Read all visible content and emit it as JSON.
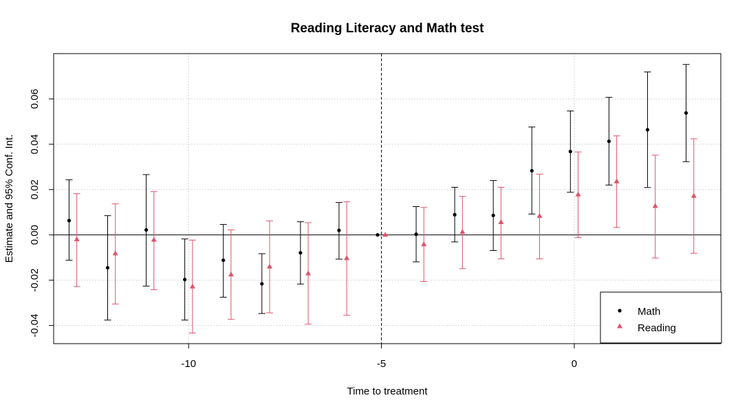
{
  "chart_data": {
    "type": "scatter",
    "title": "Reading Literacy and Math test",
    "xlabel": "Time to treatment",
    "ylabel": "Estimate and 95% Conf. Int.",
    "xlim": [
      -13.5,
      3.8
    ],
    "ylim": [
      -0.048,
      0.08
    ],
    "x_ticks": [
      -10,
      -5,
      0
    ],
    "y_ticks": [
      -0.04,
      -0.02,
      0.0,
      0.02,
      0.04,
      0.06
    ],
    "x_tick_labels": [
      "-10",
      "-5",
      "0"
    ],
    "y_tick_labels": [
      "-0.04",
      "-0.02",
      "0.00",
      "0.02",
      "0.04",
      "0.06"
    ],
    "grid": true,
    "reference_line_x": -5,
    "reference_line_y": 0,
    "legend_position": "bottom-right",
    "series": [
      {
        "name": "Math",
        "color": "#000000",
        "marker": "circle",
        "offset": -0.1,
        "x": [
          -13,
          -12,
          -11,
          -10,
          -9,
          -8,
          -7,
          -6,
          -5,
          -4,
          -3,
          -2,
          -1,
          0,
          1,
          2,
          3
        ],
        "y": [
          0.0063,
          -0.0145,
          0.0022,
          -0.0197,
          -0.0112,
          -0.0216,
          -0.0079,
          0.002,
          0.0,
          0.0003,
          0.0089,
          0.0086,
          0.0283,
          0.0368,
          0.0413,
          0.0464,
          0.0538
        ],
        "lower": [
          -0.0112,
          -0.0376,
          -0.0226,
          -0.0376,
          -0.0275,
          -0.0347,
          -0.0217,
          -0.0107,
          0.0,
          -0.0119,
          -0.0031,
          -0.0069,
          0.0092,
          0.0188,
          0.022,
          0.0209,
          0.0323
        ],
        "upper": [
          0.0243,
          0.0085,
          0.0266,
          -0.0018,
          0.0046,
          -0.0083,
          0.0058,
          0.0143,
          0.0,
          0.0125,
          0.021,
          0.024,
          0.0476,
          0.0547,
          0.0607,
          0.0719,
          0.0752
        ]
      },
      {
        "name": "Reading",
        "color": "#df536b",
        "marker": "triangle",
        "offset": 0.1,
        "x": [
          -13,
          -12,
          -11,
          -10,
          -9,
          -8,
          -7,
          -6,
          -5,
          -4,
          -3,
          -2,
          -1,
          0,
          1,
          2,
          3
        ],
        "y": [
          -0.002,
          -0.0082,
          -0.0022,
          -0.0228,
          -0.0175,
          -0.014,
          -0.017,
          -0.0103,
          0.0,
          -0.0042,
          0.0013,
          0.0056,
          0.0083,
          0.0178,
          0.0236,
          0.0127,
          0.0172
        ],
        "lower": [
          -0.0228,
          -0.0305,
          -0.0242,
          -0.0433,
          -0.0373,
          -0.0344,
          -0.0394,
          -0.0355,
          0.0,
          -0.0206,
          -0.0149,
          -0.0106,
          -0.0106,
          -0.0012,
          0.0033,
          -0.0102,
          -0.0081
        ],
        "upper": [
          0.0182,
          0.0137,
          0.0191,
          -0.0023,
          0.0022,
          0.0062,
          0.0054,
          0.0146,
          0.0,
          0.0121,
          0.017,
          0.021,
          0.0268,
          0.0366,
          0.0437,
          0.0352,
          0.0424
        ]
      }
    ]
  }
}
